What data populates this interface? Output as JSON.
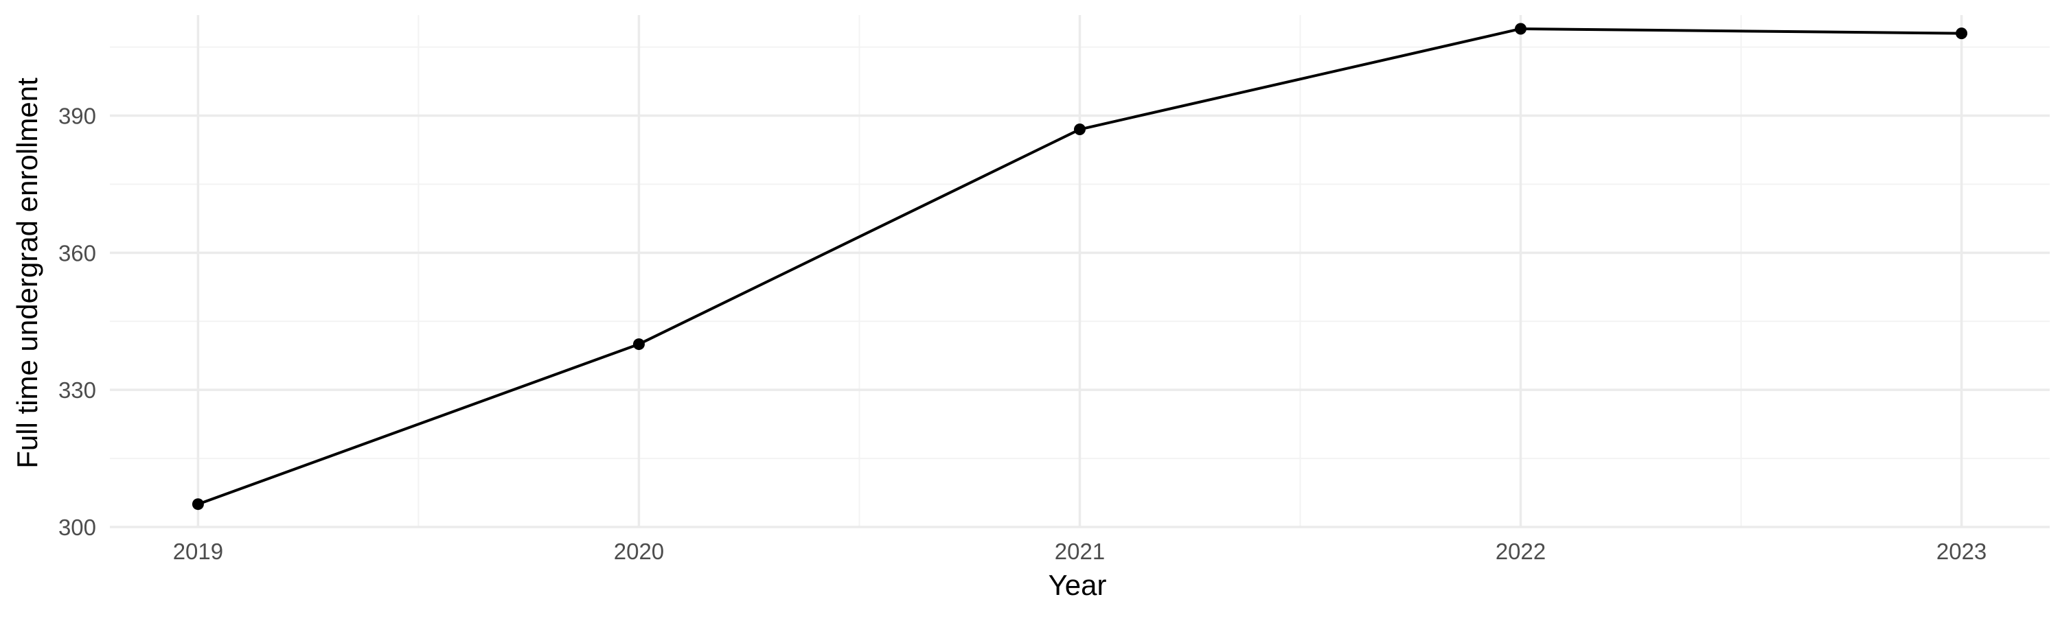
{
  "chart_data": {
    "type": "line",
    "title": "",
    "xlabel": "Year",
    "ylabel": "Full time undergrad enrollment",
    "x": [
      2019,
      2020,
      2021,
      2022,
      2023
    ],
    "series": [
      {
        "name": "",
        "values": [
          305,
          340,
          387,
          409,
          408
        ]
      }
    ],
    "xticks": [
      "2019",
      "2020",
      "2021",
      "2022",
      "2023"
    ],
    "yticks": [
      300,
      330,
      360,
      390
    ],
    "xlim": [
      2018.8,
      2023.2
    ],
    "ylim": [
      300,
      412
    ],
    "grid": true,
    "colors": {
      "line": "#000000",
      "point": "#000000",
      "grid_major": "#ebebeb",
      "grid_minor": "#f3f3f3",
      "tick_text": "#4d4d4d",
      "axis_title": "#000000"
    }
  }
}
